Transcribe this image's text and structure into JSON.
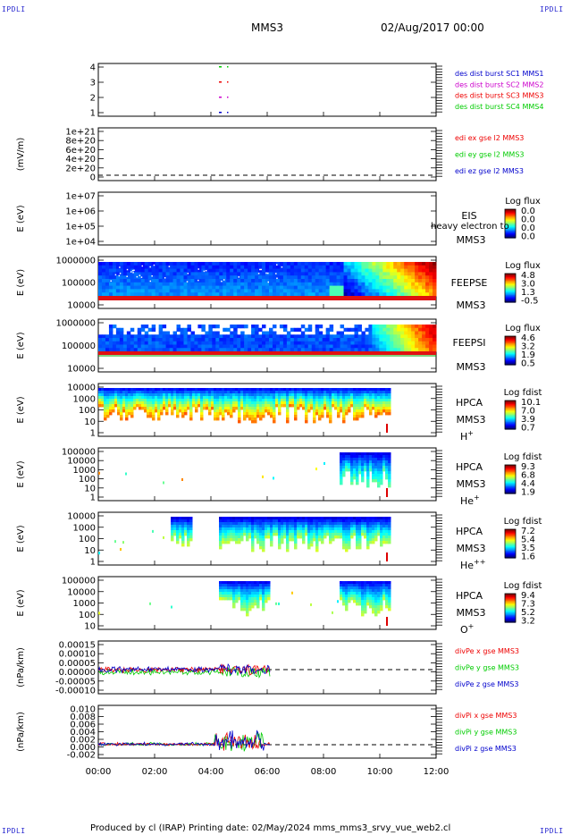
{
  "corners": {
    "tl": "IPDLI",
    "tr": "IPDLI",
    "bl": "IPDLI",
    "br": "IPDLI"
  },
  "header": {
    "spacecraft": "MMS3",
    "date": "02/Aug/2017 00:00"
  },
  "footer": {
    "text": "Produced by cl (IRAP)   Printing date: 02/May/2024   mms_mms3_srvy_vue_web2.cl"
  },
  "colors": {
    "red": "#ee0000",
    "green": "#00cc00",
    "blue": "#0000cc",
    "magenta": "#cc00cc"
  },
  "chart_data": [
    {
      "type": "scatter",
      "panel": "burst",
      "ytick_labels": [
        "4",
        "3",
        "2",
        "1"
      ],
      "legend": [
        {
          "text": "des dist burst SC1 MMS1",
          "color": "#0000cc"
        },
        {
          "text": "des dist burst SC2 MMS2",
          "color": "#cc00cc"
        },
        {
          "text": "des dist burst SC3 MMS3",
          "color": "#ee0000"
        },
        {
          "text": "des dist burst SC4 MMS4",
          "color": "#00cc00"
        }
      ]
    },
    {
      "type": "line",
      "panel": "edi",
      "ylabel": "(mV/m)",
      "ytick_labels": [
        "1e+21",
        "8e+20",
        "6e+20",
        "4e+20",
        "2e+20",
        "0"
      ],
      "legend": [
        {
          "text": "edi ex gse l2 MMS3",
          "color": "#ee0000"
        },
        {
          "text": "edi ey gse l2 MMS3",
          "color": "#00cc00"
        },
        {
          "text": "edi ez gse l2 MMS3",
          "color": "#0000cc"
        }
      ]
    },
    {
      "type": "heatmap",
      "panel": "eis",
      "ylabel": "E (eV)",
      "ytick_labels": [
        "1e+07",
        "1e+06",
        "1e+05",
        "1e+04"
      ],
      "labels": [
        "EIS",
        "MMS3"
      ],
      "overlay": "heavy electron to",
      "colorbar": {
        "title": "Log flux",
        "ticks": [
          "0.0",
          "0.0",
          "0.0",
          "0.0"
        ]
      }
    },
    {
      "type": "heatmap",
      "panel": "feepse",
      "ylabel": "E (eV)",
      "ytick_labels": [
        "1000000",
        "100000",
        "10000"
      ],
      "labels": [
        "FEEPSE",
        "MMS3"
      ],
      "colorbar": {
        "title": "Log flux",
        "ticks": [
          "4.8",
          "3.0",
          "1.3",
          "-0.5"
        ]
      }
    },
    {
      "type": "heatmap",
      "panel": "feepsi",
      "ylabel": "E (eV)",
      "ytick_labels": [
        "1000000",
        "100000",
        "10000"
      ],
      "labels": [
        "FEEPSI",
        "MMS3"
      ],
      "colorbar": {
        "title": "Log flux",
        "ticks": [
          "4.6",
          "3.2",
          "1.9",
          "0.5"
        ]
      }
    },
    {
      "type": "heatmap",
      "panel": "hpca-h",
      "ylabel": "E (eV)",
      "ytick_labels": [
        "10000",
        "1000",
        "100",
        "10",
        "1"
      ],
      "labels": [
        "HPCA",
        "MMS3"
      ],
      "species": "H",
      "species_sup": "+",
      "colorbar": {
        "title": "Log fdist",
        "ticks": [
          "10.1",
          "7.0",
          "3.9",
          "0.7"
        ]
      }
    },
    {
      "type": "heatmap",
      "panel": "hpca-he",
      "ylabel": "E (eV)",
      "ytick_labels": [
        "100000",
        "10000",
        "1000",
        "100",
        "10",
        "1"
      ],
      "labels": [
        "HPCA",
        "MMS3"
      ],
      "species": "He",
      "species_sup": "+",
      "colorbar": {
        "title": "Log fdist",
        "ticks": [
          "9.3",
          "6.8",
          "4.4",
          "1.9"
        ]
      }
    },
    {
      "type": "heatmap",
      "panel": "hpca-hepp",
      "ylabel": "E (eV)",
      "ytick_labels": [
        "10000",
        "1000",
        "100",
        "10",
        "1"
      ],
      "labels": [
        "HPCA",
        "MMS3"
      ],
      "species": "He",
      "species_sup": "++",
      "colorbar": {
        "title": "Log fdist",
        "ticks": [
          "7.2",
          "5.4",
          "3.5",
          "1.6"
        ]
      }
    },
    {
      "type": "heatmap",
      "panel": "hpca-o",
      "ylabel": "E (eV)",
      "ytick_labels": [
        "100000",
        "10000",
        "1000",
        "100",
        "10"
      ],
      "labels": [
        "HPCA",
        "MMS3"
      ],
      "species": "O",
      "species_sup": "+",
      "colorbar": {
        "title": "Log fdist",
        "ticks": [
          "9.4",
          "7.3",
          "5.2",
          "3.2"
        ]
      }
    },
    {
      "type": "line",
      "panel": "divpe",
      "ylabel": "(nPa/km)",
      "ytick_labels": [
        "0.00015",
        "0.00010",
        "0.00005",
        "0.00000",
        "-0.00005",
        "-0.00010"
      ],
      "legend": [
        {
          "text": "divPe x gse MMS3",
          "color": "#ee0000"
        },
        {
          "text": "divPe y gse MMS3",
          "color": "#00cc00"
        },
        {
          "text": "divPe z gse MMS3",
          "color": "#0000cc"
        }
      ]
    },
    {
      "type": "line",
      "panel": "divpi",
      "ylabel": "(nPa/km)",
      "ytick_labels": [
        "0.010",
        "0.008",
        "0.006",
        "0.004",
        "0.002",
        "0.000",
        "-0.002"
      ],
      "legend": [
        {
          "text": "divPi x gse MMS3",
          "color": "#ee0000"
        },
        {
          "text": "divPi y gse MMS3",
          "color": "#00cc00"
        },
        {
          "text": "divPi z gse MMS3",
          "color": "#0000cc"
        }
      ]
    }
  ],
  "time_axis": {
    "ticks": [
      "00:00",
      "02:00",
      "04:00",
      "06:00",
      "08:00",
      "10:00",
      "12:00"
    ]
  }
}
